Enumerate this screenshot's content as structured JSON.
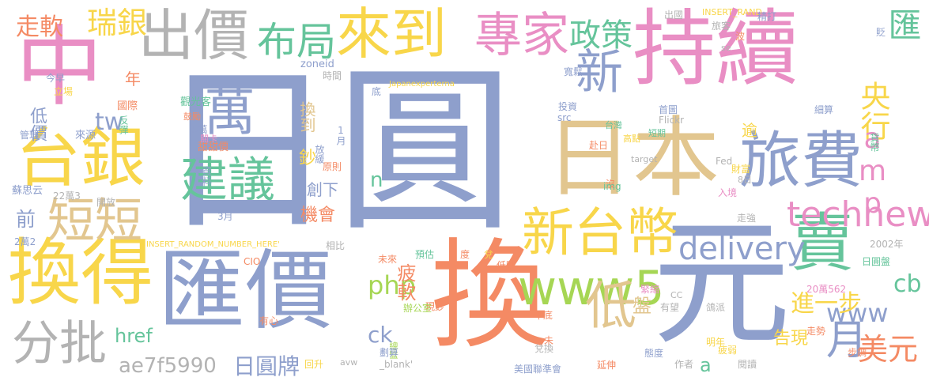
{
  "colors": {
    "blue": "#8e9fcc",
    "pink": "#e98ec4",
    "tan": "#e2c68f",
    "yellow": "#f8d64a",
    "green": "#65c49b",
    "orange": "#f48a64",
    "grey": "#b3b3b3",
    "lime": "#a6d654",
    "background": "#ffffff"
  },
  "words": [
    {
      "text": "日圓",
      "color": "blue"
    },
    {
      "text": "換",
      "color": "orange"
    },
    {
      "text": "元",
      "color": "blue"
    },
    {
      "text": "持續",
      "color": "pink"
    },
    {
      "text": "中",
      "color": "pink"
    },
    {
      "text": "匯價",
      "color": "blue"
    },
    {
      "text": "日本",
      "color": "tan"
    },
    {
      "text": "旅費",
      "color": "blue"
    },
    {
      "text": "換得",
      "color": "yellow"
    },
    {
      "text": "台銀",
      "color": "yellow"
    },
    {
      "text": "出價",
      "color": "grey"
    },
    {
      "text": "來到",
      "color": "yellow"
    },
    {
      "text": "專家",
      "color": "pink"
    },
    {
      "text": "萬",
      "color": "blue"
    },
    {
      "text": "建議",
      "color": "green"
    },
    {
      "text": "新台幣",
      "color": "yellow"
    },
    {
      "text": "賣",
      "color": "green"
    },
    {
      "text": "www5",
      "color": "lime"
    },
    {
      "text": "新",
      "color": "blue"
    },
    {
      "text": "短短",
      "color": "tan"
    },
    {
      "text": "分批",
      "color": "grey"
    },
    {
      "text": "布局",
      "color": "green"
    },
    {
      "text": "低",
      "color": "tan"
    },
    {
      "text": "technews",
      "color": "pink"
    },
    {
      "text": "delivery",
      "color": "blue"
    },
    {
      "text": "月",
      "color": "blue"
    },
    {
      "text": "瑞銀",
      "color": "yellow"
    },
    {
      "text": "政策",
      "color": "green"
    },
    {
      "text": "匯",
      "color": "green"
    },
    {
      "text": "央行",
      "color": "yellow"
    },
    {
      "text": "amp",
      "color": "pink"
    },
    {
      "text": "www",
      "color": "blue"
    },
    {
      "text": "美元",
      "color": "orange"
    },
    {
      "text": "cb",
      "color": "green"
    },
    {
      "text": "php",
      "color": "lime"
    },
    {
      "text": "進一步",
      "color": "yellow"
    },
    {
      "text": "ae7f5990",
      "color": "grey"
    },
    {
      "text": "日圓牌",
      "color": "blue"
    },
    {
      "text": "走軟",
      "color": "orange"
    },
    {
      "text": "tw",
      "color": "blue"
    },
    {
      "text": "ck",
      "color": "blue"
    },
    {
      "text": "href",
      "color": "green"
    },
    {
      "text": "疲軟",
      "color": "orange"
    },
    {
      "text": "盤",
      "color": "tan"
    },
    {
      "text": "機會",
      "color": "orange"
    },
    {
      "text": "創下",
      "color": "blue"
    },
    {
      "text": "換到",
      "color": "tan"
    },
    {
      "text": "告現",
      "color": "yellow"
    },
    {
      "text": "前",
      "color": "blue"
    },
    {
      "text": "低價",
      "color": "blue"
    },
    {
      "text": "n",
      "color": "green"
    },
    {
      "text": "a",
      "color": "green"
    },
    {
      "text": "年",
      "color": "orange"
    },
    {
      "text": "逾",
      "color": "yellow"
    },
    {
      "text": "鈔",
      "color": "yellow"
    },
    {
      "text": "觀光客",
      "color": "green"
    },
    {
      "text": "甜甜價",
      "color": "orange"
    },
    {
      "text": "資料",
      "color": "blue"
    },
    {
      "text": "5萬",
      "color": "blue"
    },
    {
      "text": "關卡",
      "color": "pink"
    },
    {
      "text": "鼓勵",
      "color": "orange"
    },
    {
      "text": "國際",
      "color": "orange"
    },
    {
      "text": "反彈",
      "color": "green"
    },
    {
      "text": "今早",
      "color": "blue"
    },
    {
      "text": "立場",
      "color": "yellow"
    },
    {
      "text": "來源",
      "color": "blue"
    },
    {
      "text": "管理",
      "color": "blue"
    },
    {
      "text": "時間",
      "color": "grey"
    },
    {
      "text": "zoneid",
      "color": "blue"
    },
    {
      "text": "Japanexperterna",
      "color": "yellow"
    },
    {
      "text": "底",
      "color": "blue"
    },
    {
      "text": "1月",
      "color": "blue"
    },
    {
      "text": "放緩",
      "color": "blue"
    },
    {
      "text": "原則",
      "color": "orange"
    },
    {
      "text": "蘇思云",
      "color": "blue"
    },
    {
      "text": "22萬3",
      "color": "grey"
    },
    {
      "text": "開放",
      "color": "grey"
    },
    {
      "text": "2萬2",
      "color": "blue"
    },
    {
      "text": "3月",
      "color": "blue"
    },
    {
      "text": "INSERT_RANDOM_NUMBER_HERE'",
      "color": "yellow"
    },
    {
      "text": "相比",
      "color": "grey"
    },
    {
      "text": "CIO",
      "color": "orange"
    },
    {
      "text": "未來",
      "color": "orange"
    },
    {
      "text": "預估",
      "color": "green"
    },
    {
      "text": "度",
      "color": "orange"
    },
    {
      "text": "兌",
      "color": "yellow"
    },
    {
      "text": "低點",
      "color": "orange"
    },
    {
      "text": "現鈔",
      "color": "orange"
    },
    {
      "text": "有心",
      "color": "orange"
    },
    {
      "text": "辦公室",
      "color": "lime"
    },
    {
      "text": "總監",
      "color": "lime"
    },
    {
      "text": "劃算",
      "color": "blue"
    },
    {
      "text": "未",
      "color": "orange"
    },
    {
      "text": "兌換",
      "color": "grey"
    },
    {
      "text": "回升",
      "color": "yellow"
    },
    {
      "text": "avw",
      "color": "grey"
    },
    {
      "text": "_blank'",
      "color": "grey"
    },
    {
      "text": "年底",
      "color": "orange"
    },
    {
      "text": "美國聯準會",
      "color": "blue"
    },
    {
      "text": "延伸",
      "color": "orange"
    },
    {
      "text": "態度",
      "color": "blue"
    },
    {
      "text": "作者",
      "color": "grey"
    },
    {
      "text": "疲弱",
      "color": "yellow"
    },
    {
      "text": "閱讀",
      "color": "grey"
    },
    {
      "text": "明年",
      "color": "yellow"
    },
    {
      "text": "走勢",
      "color": "orange"
    },
    {
      "text": "步調",
      "color": "orange"
    },
    {
      "text": "鴿派",
      "color": "grey"
    },
    {
      "text": "有望",
      "color": "grey"
    },
    {
      "text": "緊縮",
      "color": "pink"
    },
    {
      "text": "CC",
      "color": "grey"
    },
    {
      "text": "20萬562",
      "color": "pink"
    },
    {
      "text": "日圓盤",
      "color": "green"
    },
    {
      "text": "2002年",
      "color": "grey"
    },
    {
      "text": "走強",
      "color": "grey"
    },
    {
      "text": "入境",
      "color": "pink"
    },
    {
      "text": "沒",
      "color": "orange"
    },
    {
      "text": "img",
      "color": "green"
    },
    {
      "text": "8日",
      "color": "grey"
    },
    {
      "text": "財富",
      "color": "yellow"
    },
    {
      "text": "Fed",
      "color": "grey"
    },
    {
      "text": "赴日",
      "color": "orange"
    },
    {
      "text": "target",
      "color": "grey"
    },
    {
      "text": "短期",
      "color": "green"
    },
    {
      "text": "高點",
      "color": "yellow"
    },
    {
      "text": "台灣",
      "color": "green"
    },
    {
      "text": "Flickr",
      "color": "grey"
    },
    {
      "text": "src",
      "color": "blue"
    },
    {
      "text": "投資",
      "color": "blue"
    },
    {
      "text": "首圖",
      "color": "blue"
    },
    {
      "text": "細算",
      "color": "blue"
    },
    {
      "text": "貨幣",
      "color": "green"
    },
    {
      "text": "寬鬆",
      "color": "blue"
    },
    {
      "text": "se",
      "color": "grey"
    },
    {
      "text": "出國",
      "color": "grey"
    },
    {
      "text": "INSERT_RAND",
      "color": "yellow"
    },
    {
      "text": "精打",
      "color": "blue"
    },
    {
      "text": "旅客",
      "color": "grey"
    },
    {
      "text": "波",
      "color": "orange"
    },
    {
      "text": "貶",
      "color": "blue"
    }
  ]
}
